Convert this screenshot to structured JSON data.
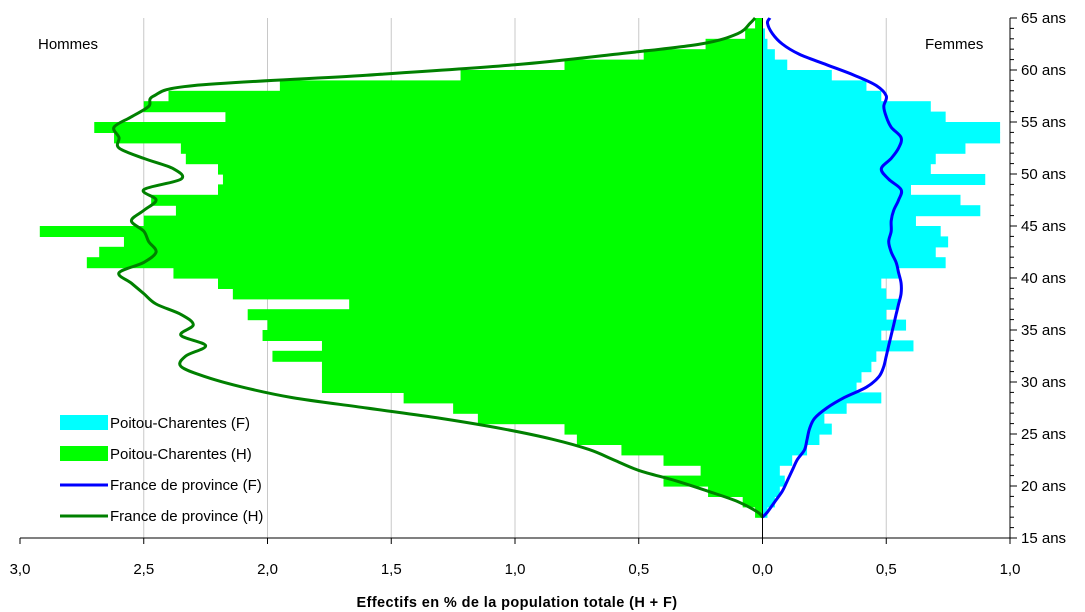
{
  "chart_data": {
    "type": "population-pyramid",
    "xlabel": "Effectifs en % de la population totale (H + F)",
    "left_label": "Hommes",
    "right_label": "Femmes",
    "source_text": "",
    "x_ticks": [
      "3,0",
      "2,5",
      "2,0",
      "1,5",
      "1,0",
      "0,5",
      "0,0",
      "0,5",
      "1,0"
    ],
    "y_ticks": [
      "15 ans",
      "20 ans",
      "25 ans",
      "30 ans",
      "35 ans",
      "40 ans",
      "45 ans",
      "50 ans",
      "55 ans",
      "60 ans",
      "65 ans"
    ],
    "xlim": [
      -3.0,
      1.0
    ],
    "ylim": [
      15,
      65
    ],
    "grid": "vertical",
    "legend_position": "bottom-left",
    "ages": [
      17,
      18,
      19,
      20,
      21,
      22,
      23,
      24,
      25,
      26,
      27,
      28,
      29,
      30,
      31,
      32,
      33,
      34,
      35,
      36,
      37,
      38,
      39,
      40,
      41,
      42,
      43,
      44,
      45,
      46,
      47,
      48,
      49,
      50,
      51,
      52,
      53,
      54,
      55,
      56,
      57,
      58,
      59,
      60,
      61,
      62,
      63,
      64
    ],
    "series": [
      {
        "name": "Poitou-Charentes (F)",
        "style": "bars",
        "side": "right",
        "color": "#00ffff",
        "values": [
          0.02,
          0.05,
          0.07,
          0.09,
          0.07,
          0.12,
          0.18,
          0.23,
          0.28,
          0.25,
          0.34,
          0.48,
          0.38,
          0.4,
          0.44,
          0.46,
          0.61,
          0.48,
          0.58,
          0.5,
          0.55,
          0.5,
          0.48,
          0.55,
          0.74,
          0.7,
          0.75,
          0.72,
          0.62,
          0.88,
          0.8,
          0.6,
          0.9,
          0.68,
          0.7,
          0.82,
          0.96,
          0.96,
          0.74,
          0.68,
          0.48,
          0.42,
          0.28,
          0.1,
          0.05,
          0.02,
          0.01,
          0.0
        ]
      },
      {
        "name": "Poitou-Charentes (H)",
        "style": "bars",
        "side": "left",
        "color": "#00ff00",
        "values": [
          0.03,
          0.08,
          0.22,
          0.4,
          0.25,
          0.4,
          0.57,
          0.75,
          0.8,
          1.15,
          1.25,
          1.45,
          1.78,
          1.78,
          1.78,
          1.98,
          1.78,
          2.02,
          2.0,
          2.08,
          1.67,
          2.14,
          2.2,
          2.38,
          2.73,
          2.68,
          2.58,
          2.92,
          2.5,
          2.37,
          2.47,
          2.2,
          2.18,
          2.2,
          2.33,
          2.35,
          2.62,
          2.7,
          2.17,
          2.5,
          2.4,
          1.95,
          1.22,
          0.8,
          0.48,
          0.23,
          0.07,
          0.03
        ]
      },
      {
        "name": "France de province (F)",
        "style": "line",
        "side": "right",
        "color": "#0000ff",
        "values": [
          0.02,
          0.05,
          0.08,
          0.1,
          0.12,
          0.14,
          0.17,
          0.18,
          0.19,
          0.21,
          0.26,
          0.33,
          0.42,
          0.47,
          0.49,
          0.5,
          0.51,
          0.52,
          0.53,
          0.54,
          0.55,
          0.56,
          0.56,
          0.55,
          0.54,
          0.52,
          0.51,
          0.52,
          0.52,
          0.53,
          0.55,
          0.56,
          0.51,
          0.48,
          0.52,
          0.55,
          0.56,
          0.52,
          0.5,
          0.49,
          0.5,
          0.46,
          0.37,
          0.26,
          0.15,
          0.08,
          0.04,
          0.02
        ]
      },
      {
        "name": "France de province (H)",
        "style": "line",
        "side": "left",
        "color": "#008000",
        "values": [
          0.02,
          0.1,
          0.22,
          0.35,
          0.5,
          0.6,
          0.7,
          0.85,
          1.05,
          1.3,
          1.6,
          1.9,
          2.1,
          2.25,
          2.35,
          2.33,
          2.25,
          2.35,
          2.3,
          2.35,
          2.45,
          2.5,
          2.55,
          2.6,
          2.5,
          2.45,
          2.48,
          2.5,
          2.55,
          2.5,
          2.45,
          2.5,
          2.35,
          2.38,
          2.5,
          2.6,
          2.6,
          2.62,
          2.55,
          2.48,
          2.46,
          2.3,
          1.6,
          1.0,
          0.6,
          0.25,
          0.1,
          0.05
        ]
      }
    ]
  }
}
